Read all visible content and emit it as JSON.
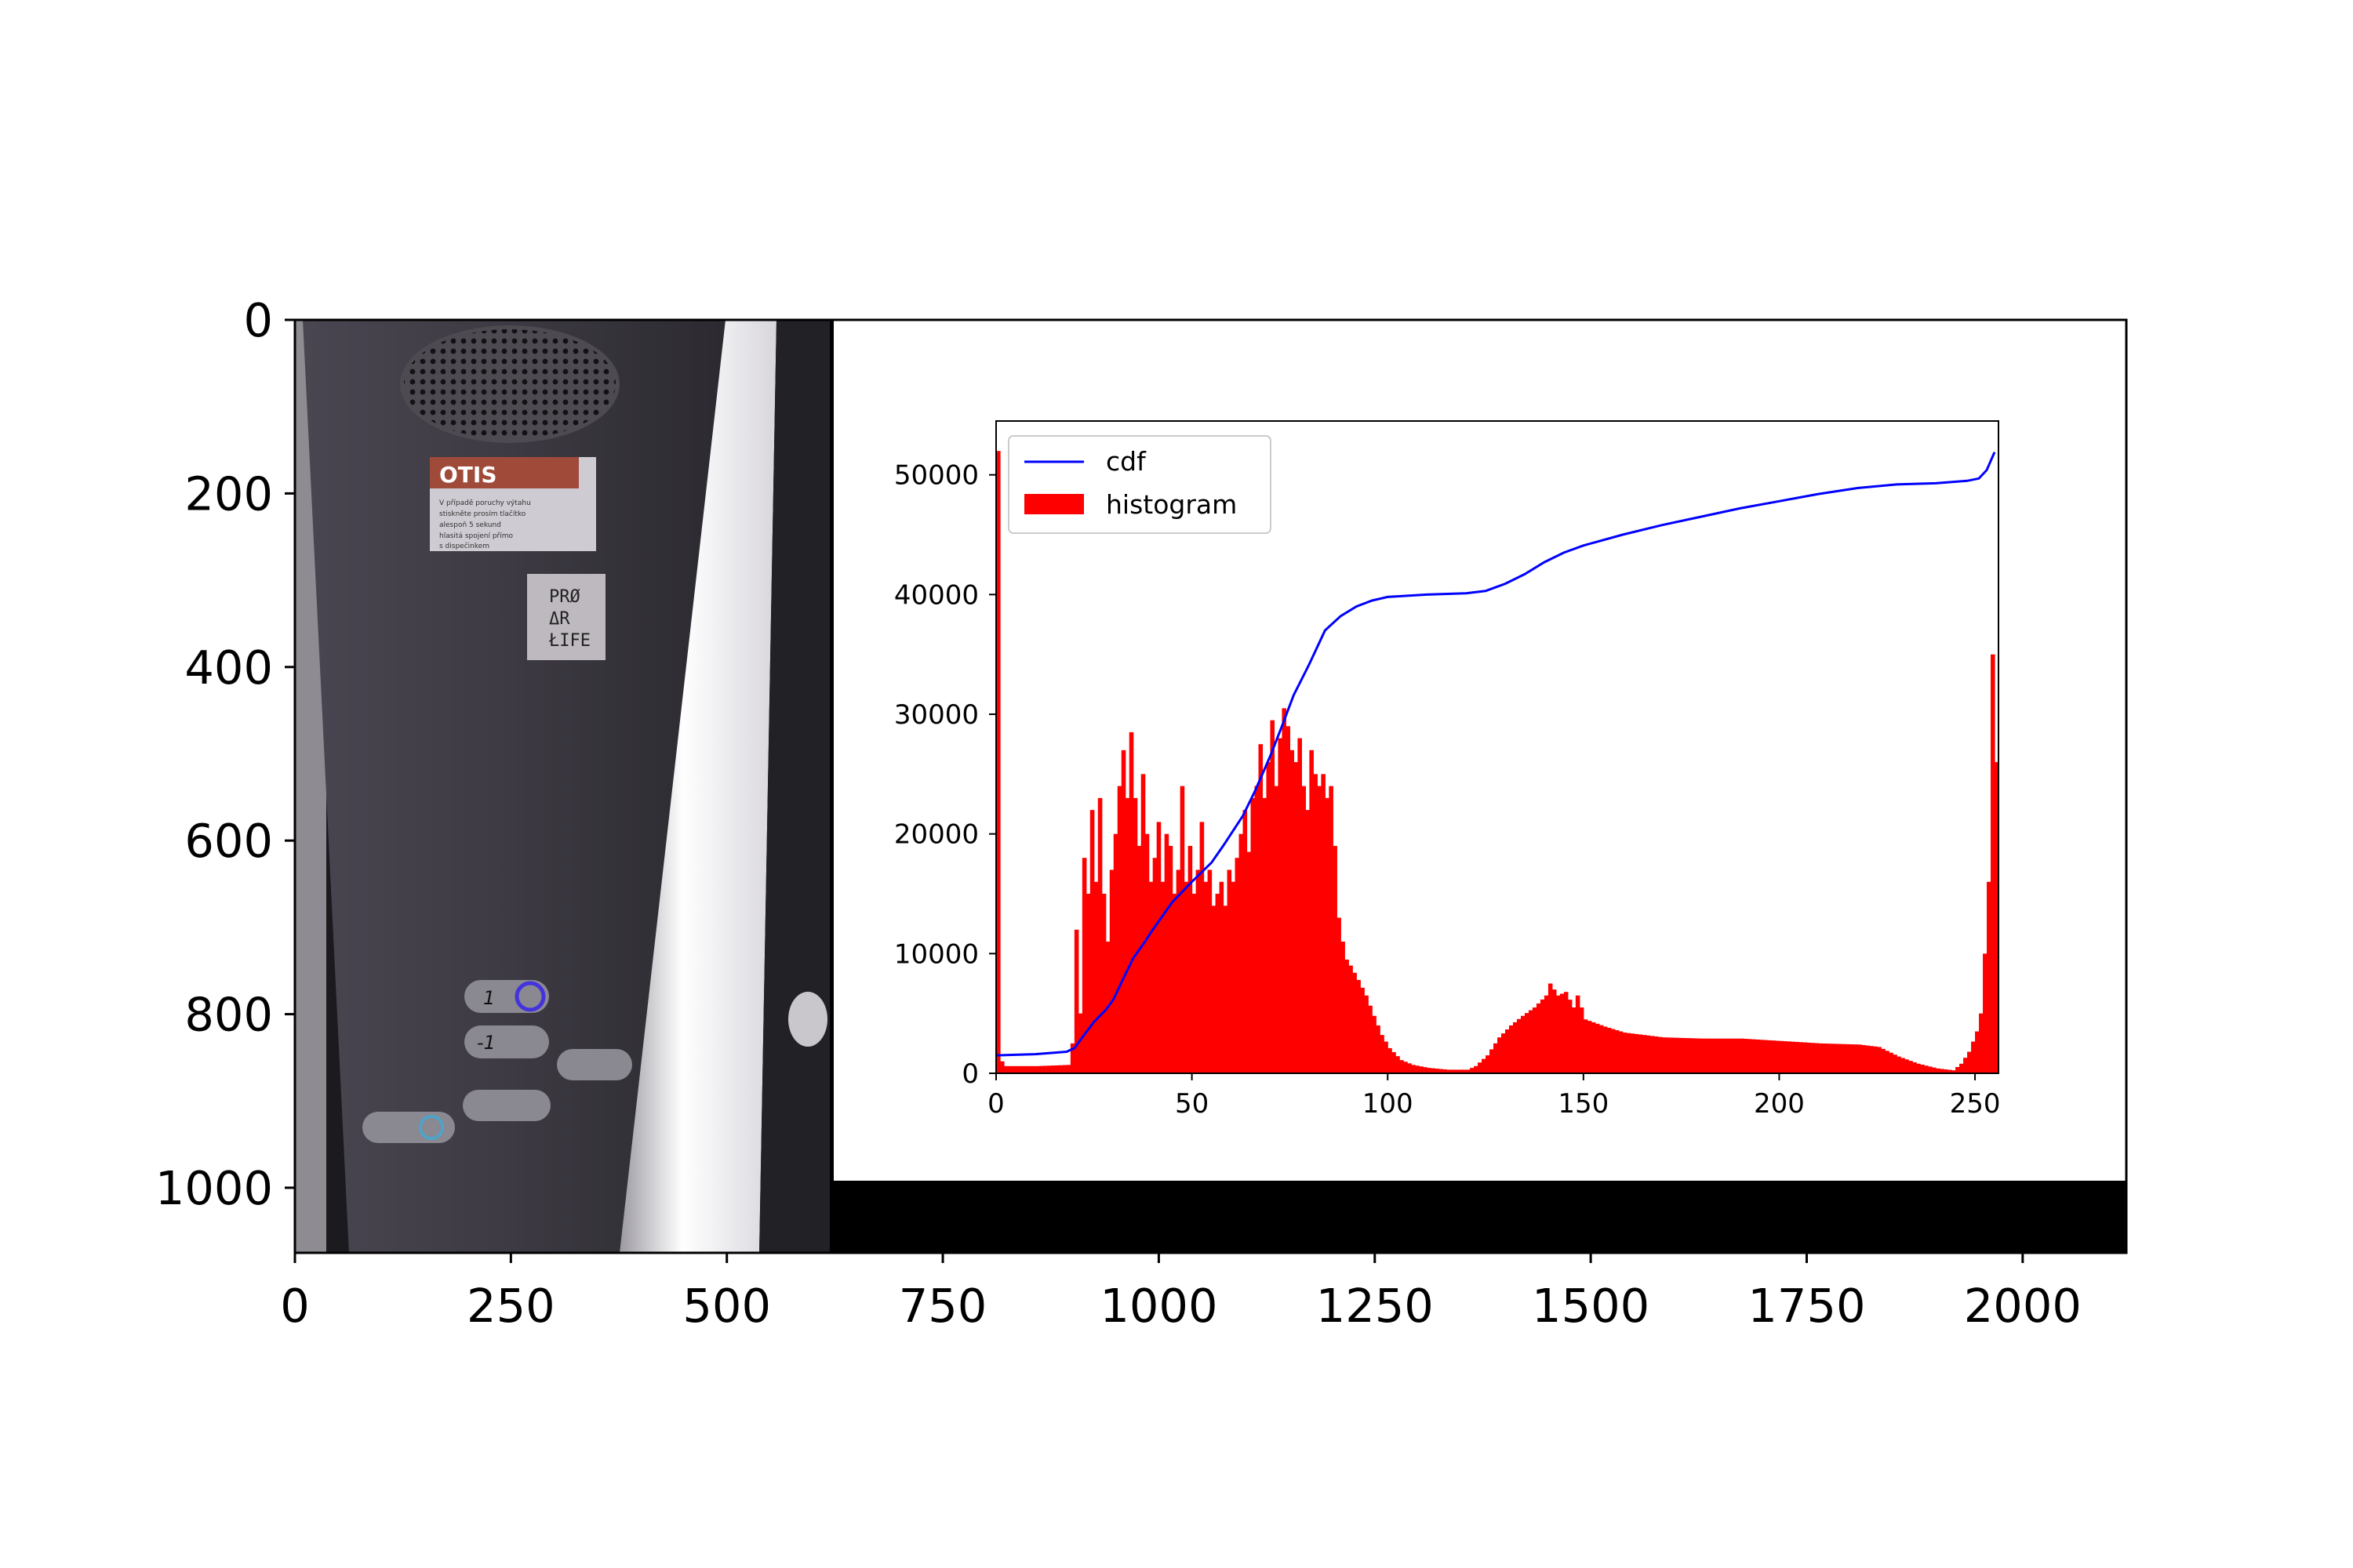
{
  "chart_data": [
    {
      "type": "image",
      "xlim": [
        0,
        2120
      ],
      "ylim": [
        1075,
        0
      ],
      "x_ticks": [
        "0",
        "250",
        "500",
        "750",
        "1000",
        "1250",
        "1500",
        "1750",
        "2000"
      ],
      "y_ticks": [
        "0",
        "200",
        "400",
        "600",
        "800",
        "1000"
      ],
      "photo_panel": {
        "subject": "elevator control panel",
        "elevator_buttons": [
          "1",
          "-1"
        ],
        "sign_label": "OTIS",
        "sticker_text": [
          "PRØ",
          "ΔR",
          "ŁIFE"
        ],
        "notice_text": [
          "V případě poruchy výtahu",
          "stiskněte prosím tlačítko",
          "alespoň 5 sekund",
          "hlasitá spojení přímo",
          "s dispečinkem"
        ]
      }
    },
    {
      "type": "bar",
      "bin_count": 256,
      "xlim": [
        0,
        256
      ],
      "ylim": [
        0,
        54500
      ],
      "x_ticks": [
        "0",
        "50",
        "100",
        "150",
        "200",
        "250"
      ],
      "y_ticks": [
        "0",
        "10000",
        "20000",
        "30000",
        "40000",
        "50000"
      ],
      "legend_position": "upper-left",
      "series": [
        {
          "name": "cdf",
          "kind": "line",
          "color": "#0000ff",
          "points": [
            [
              0,
              1500
            ],
            [
              10,
              1600
            ],
            [
              18,
              1800
            ],
            [
              20,
              2100
            ],
            [
              22,
              3000
            ],
            [
              25,
              4300
            ],
            [
              28,
              5300
            ],
            [
              30,
              6200
            ],
            [
              32,
              7600
            ],
            [
              35,
              9600
            ],
            [
              38,
              11000
            ],
            [
              40,
              12000
            ],
            [
              45,
              14300
            ],
            [
              50,
              16000
            ],
            [
              55,
              17600
            ],
            [
              58,
              19000
            ],
            [
              60,
              20000
            ],
            [
              63,
              21500
            ],
            [
              66,
              23500
            ],
            [
              70,
              26500
            ],
            [
              73,
              29000
            ],
            [
              76,
              31600
            ],
            [
              80,
              34200
            ],
            [
              84,
              37000
            ],
            [
              88,
              38200
            ],
            [
              92,
              39000
            ],
            [
              96,
              39500
            ],
            [
              100,
              39800
            ],
            [
              110,
              40000
            ],
            [
              120,
              40100
            ],
            [
              125,
              40300
            ],
            [
              130,
              40900
            ],
            [
              135,
              41700
            ],
            [
              140,
              42700
            ],
            [
              145,
              43500
            ],
            [
              150,
              44100
            ],
            [
              160,
              45000
            ],
            [
              170,
              45800
            ],
            [
              180,
              46500
            ],
            [
              190,
              47200
            ],
            [
              200,
              47800
            ],
            [
              210,
              48400
            ],
            [
              220,
              48900
            ],
            [
              230,
              49200
            ],
            [
              240,
              49300
            ],
            [
              248,
              49500
            ],
            [
              251,
              49700
            ],
            [
              253,
              50400
            ],
            [
              255,
              51900
            ]
          ]
        },
        {
          "name": "histogram",
          "kind": "bar",
          "color": "#ff0000",
          "anchors": [
            [
              0,
              52000
            ],
            [
              1,
              1000
            ],
            [
              2,
              600
            ],
            [
              10,
              600
            ],
            [
              18,
              700
            ],
            [
              19,
              2500
            ],
            [
              20,
              12000
            ],
            [
              21,
              5000
            ],
            [
              22,
              18000
            ],
            [
              23,
              15000
            ],
            [
              24,
              22000
            ],
            [
              25,
              16000
            ],
            [
              26,
              23000
            ],
            [
              27,
              15000
            ],
            [
              28,
              11000
            ],
            [
              29,
              17000
            ],
            [
              30,
              20000
            ],
            [
              31,
              24000
            ],
            [
              32,
              27000
            ],
            [
              33,
              23000
            ],
            [
              34,
              28500
            ],
            [
              35,
              23000
            ],
            [
              36,
              19000
            ],
            [
              37,
              25000
            ],
            [
              38,
              20000
            ],
            [
              39,
              16000
            ],
            [
              40,
              18000
            ],
            [
              41,
              21000
            ],
            [
              42,
              16000
            ],
            [
              43,
              20000
            ],
            [
              44,
              19000
            ],
            [
              45,
              15000
            ],
            [
              46,
              17000
            ],
            [
              47,
              24000
            ],
            [
              48,
              16000
            ],
            [
              49,
              19000
            ],
            [
              50,
              15000
            ],
            [
              51,
              17000
            ],
            [
              52,
              21000
            ],
            [
              53,
              16000
            ],
            [
              54,
              17000
            ],
            [
              55,
              14000
            ],
            [
              56,
              15000
            ],
            [
              57,
              16000
            ],
            [
              58,
              14000
            ],
            [
              59,
              17000
            ],
            [
              60,
              16000
            ],
            [
              61,
              18000
            ],
            [
              62,
              20000
            ],
            [
              63,
              22000
            ],
            [
              64,
              18500
            ],
            [
              65,
              23000
            ],
            [
              66,
              24000
            ],
            [
              67,
              27500
            ],
            [
              68,
              23000
            ],
            [
              69,
              26000
            ],
            [
              70,
              29500
            ],
            [
              71,
              24000
            ],
            [
              72,
              28000
            ],
            [
              73,
              30500
            ],
            [
              74,
              29000
            ],
            [
              75,
              27000
            ],
            [
              76,
              26000
            ],
            [
              77,
              28000
            ],
            [
              78,
              24000
            ],
            [
              79,
              22000
            ],
            [
              80,
              27000
            ],
            [
              81,
              25000
            ],
            [
              82,
              24000
            ],
            [
              83,
              25000
            ],
            [
              84,
              23000
            ],
            [
              85,
              24000
            ],
            [
              86,
              19000
            ],
            [
              87,
              13000
            ],
            [
              88,
              11000
            ],
            [
              89,
              9500
            ],
            [
              90,
              9000
            ],
            [
              92,
              7800
            ],
            [
              94,
              6500
            ],
            [
              96,
              4800
            ],
            [
              98,
              3200
            ],
            [
              100,
              2100
            ],
            [
              103,
              1100
            ],
            [
              106,
              700
            ],
            [
              110,
              450
            ],
            [
              115,
              300
            ],
            [
              120,
              300
            ],
            [
              122,
              600
            ],
            [
              125,
              1500
            ],
            [
              128,
              3000
            ],
            [
              131,
              4000
            ],
            [
              134,
              4800
            ],
            [
              137,
              5500
            ],
            [
              140,
              6500
            ],
            [
              141,
              7500
            ],
            [
              142,
              7000
            ],
            [
              143,
              6500
            ],
            [
              145,
              6800
            ],
            [
              147,
              5500
            ],
            [
              148,
              6500
            ],
            [
              150,
              4500
            ],
            [
              155,
              3900
            ],
            [
              160,
              3400
            ],
            [
              170,
              3000
            ],
            [
              180,
              2900
            ],
            [
              190,
              2900
            ],
            [
              200,
              2700
            ],
            [
              210,
              2500
            ],
            [
              220,
              2400
            ],
            [
              225,
              2200
            ],
            [
              230,
              1400
            ],
            [
              235,
              800
            ],
            [
              240,
              400
            ],
            [
              244,
              250
            ],
            [
              246,
              800
            ],
            [
              248,
              1800
            ],
            [
              250,
              3500
            ],
            [
              251,
              5000
            ],
            [
              252,
              10000
            ],
            [
              253,
              16000
            ],
            [
              254,
              35000
            ],
            [
              255,
              26000
            ]
          ]
        }
      ]
    }
  ]
}
